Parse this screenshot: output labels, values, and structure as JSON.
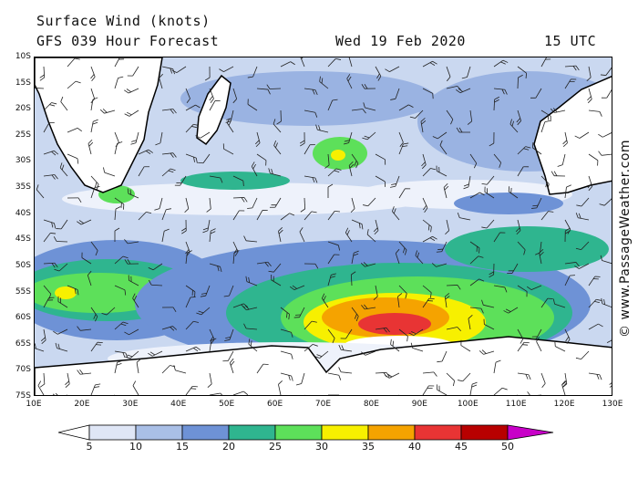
{
  "title": {
    "line1": "Surface Wind (knots)",
    "forecast": "GFS 039 Hour Forecast",
    "date": "Wed 19 Feb 2020",
    "time": "15 UTC"
  },
  "credit": "© www.PassageWeather.com",
  "axes": {
    "lat_labels": [
      "10S",
      "15S",
      "20S",
      "25S",
      "30S",
      "35S",
      "40S",
      "45S",
      "50S",
      "55S",
      "60S",
      "65S",
      "70S",
      "75S"
    ],
    "lon_labels": [
      "10E",
      "20E",
      "30E",
      "40E",
      "50E",
      "60E",
      "70E",
      "80E",
      "90E",
      "100E",
      "110E",
      "120E",
      "130E"
    ]
  },
  "legend": {
    "labels": [
      "5",
      "10",
      "15",
      "20",
      "25",
      "30",
      "35",
      "40",
      "45",
      "50"
    ],
    "colors": [
      "#ffffff",
      "#dfe6f6",
      "#a9bfe6",
      "#6e92d6",
      "#2fb58f",
      "#5de05a",
      "#f7f000",
      "#f5a300",
      "#e83434",
      "#b80000",
      "#c800c8"
    ]
  },
  "colors": {
    "land": "#ffffff",
    "ocean_base": "#cad8f0",
    "coast": "#000000"
  }
}
